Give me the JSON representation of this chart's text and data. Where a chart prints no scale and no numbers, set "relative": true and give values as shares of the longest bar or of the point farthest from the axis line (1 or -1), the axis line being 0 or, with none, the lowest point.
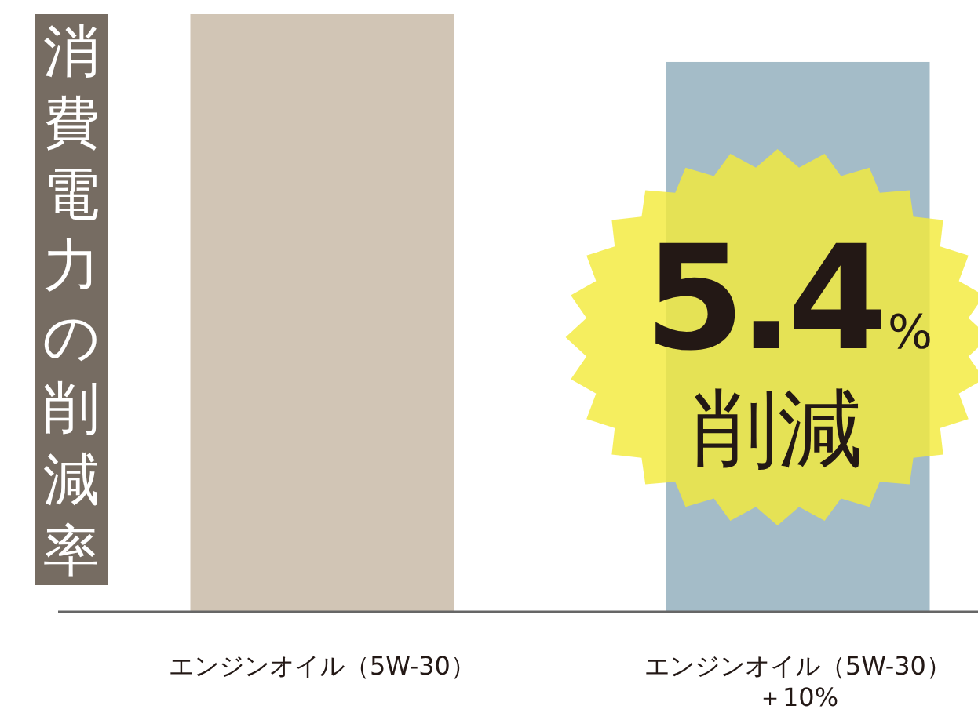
{
  "chart_data": {
    "type": "bar",
    "relative": true,
    "ylabel": "消費電力の削減率",
    "categories": [
      "エンジンオイル（5W-30）",
      "エンジンオイル（5W-30）＋10%"
    ],
    "values": [
      1,
      0.92
    ],
    "colors": [
      "#d1c5b5",
      "#a4bcc8"
    ],
    "annotations": [
      "5.4%",
      "削減"
    ]
  }
}
